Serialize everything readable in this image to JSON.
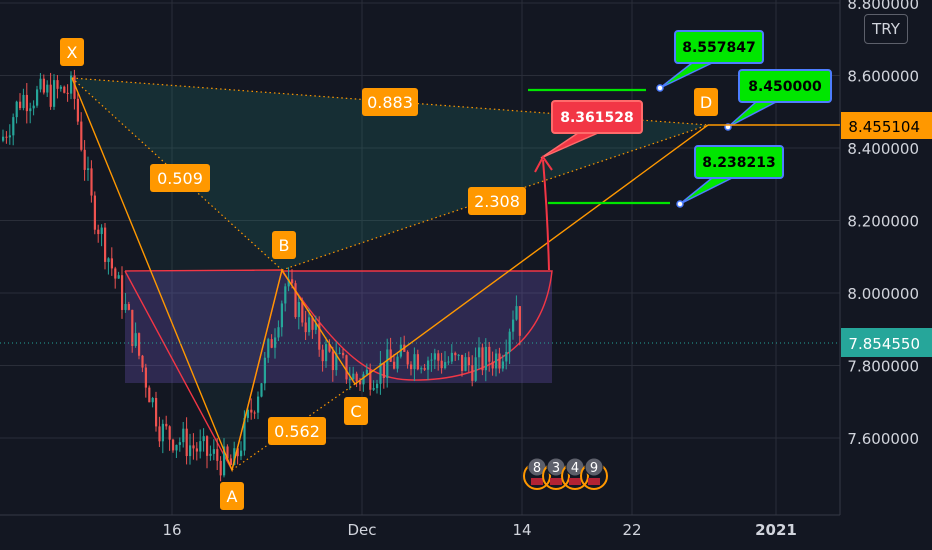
{
  "currency": "TRY",
  "colors": {
    "background": "#131722",
    "up": "#26a69a",
    "down": "#ef5350",
    "orange": "#ff9800",
    "red": "#f23645",
    "green": "#00e600",
    "price_line": "#26a69a",
    "axis_text": "#d1d4dc"
  },
  "chart_data": {
    "type": "candlestick",
    "ylim": [
      7.42,
      8.82
    ],
    "y_ticks": [
      "8.800000",
      "8.600000",
      "8.400000",
      "8.200000",
      "8.000000",
      "7.800000",
      "7.600000"
    ],
    "x_ticks": [
      "16",
      "Dec",
      "14",
      "22",
      "2021"
    ],
    "last_price": "7.854550",
    "pattern": {
      "points": [
        {
          "label": "X",
          "value": 8.58
        },
        {
          "label": "A",
          "value": 7.5
        },
        {
          "label": "B",
          "value": 8.05
        },
        {
          "label": "C",
          "value": 7.73
        },
        {
          "label": "D",
          "value": 8.45
        }
      ],
      "ratios": [
        "0.509",
        "0.562",
        "2.308",
        "0.883"
      ]
    },
    "annotations": [
      {
        "text": "8.557847",
        "color": "green",
        "level": 8.557847
      },
      {
        "text": "8.450000",
        "color": "green",
        "level": 8.45
      },
      {
        "text": "8.238213",
        "color": "green",
        "level": 8.238213
      },
      {
        "text": "8.361528",
        "color": "red",
        "level": 8.361528
      }
    ],
    "price_label": "8.455104",
    "events": [
      "8",
      "3",
      "4",
      "9"
    ]
  }
}
